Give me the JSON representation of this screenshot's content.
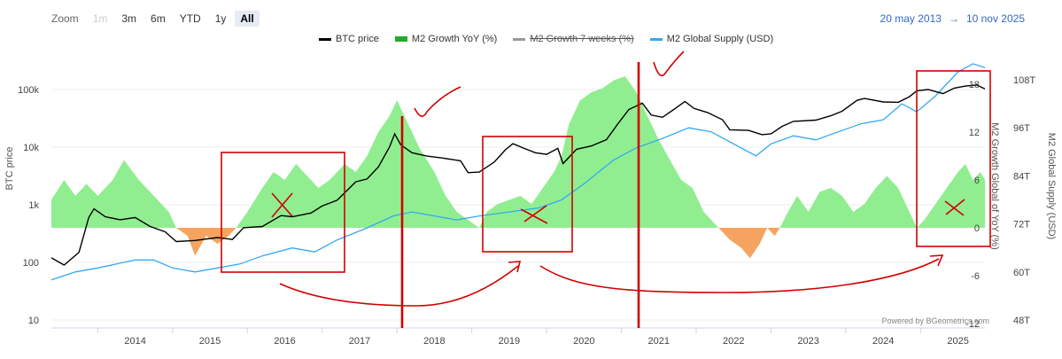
{
  "toolbar": {
    "zoom_label": "Zoom",
    "buttons": [
      "1m",
      "3m",
      "6m",
      "YTD",
      "1y",
      "All"
    ],
    "active": "All"
  },
  "range": {
    "from": "20 may 2013",
    "arrow": "→",
    "to": "10 nov 2025"
  },
  "credit": "Powered by BGeometrics.com",
  "colors": {
    "btc": "#000000",
    "m2_growth_pos": "#90ee90",
    "m2_growth_neg": "#f4a460",
    "m2_supply": "#33a8f0",
    "annotation": "#d20000"
  },
  "chart_data": {
    "type": "line",
    "legend": [
      "BTC price",
      "M2 Growth YoY (%)",
      "M2 Growth 7 weeks (%)",
      "M2 Global Supply (USD)"
    ],
    "left_axis": {
      "title": "BTC price",
      "scale": "log",
      "ticks": [
        "10",
        "100",
        "1k",
        "10k",
        "100k"
      ],
      "values": [
        10,
        100,
        1000,
        10000,
        100000
      ]
    },
    "growth_axis": {
      "title": "M2 Growth Global of YoY (%)",
      "ticks": [
        "-12",
        "-6",
        "0",
        "6",
        "12",
        "18"
      ],
      "values": [
        -12,
        -6,
        0,
        6,
        12,
        18
      ]
    },
    "supply_axis": {
      "title": "M2 Global Supply (USD)",
      "ticks": [
        "48T",
        "60T",
        "72T",
        "84T",
        "96T",
        "108T"
      ],
      "values": [
        48,
        60,
        72,
        84,
        96,
        108
      ]
    },
    "x_ticks": [
      "2014",
      "2015",
      "2016",
      "2017",
      "2018",
      "2019",
      "2020",
      "2021",
      "2022",
      "2023",
      "2024",
      "2025"
    ],
    "x_range": [
      2013.38,
      2025.86
    ],
    "series": [
      {
        "name": "BTC price",
        "points": [
          [
            2013.38,
            120
          ],
          [
            2013.55,
            90
          ],
          [
            2013.75,
            150
          ],
          [
            2013.88,
            600
          ],
          [
            2013.95,
            850
          ],
          [
            2014.1,
            620
          ],
          [
            2014.3,
            550
          ],
          [
            2014.5,
            600
          ],
          [
            2014.7,
            420
          ],
          [
            2014.9,
            340
          ],
          [
            2015.05,
            230
          ],
          [
            2015.3,
            240
          ],
          [
            2015.6,
            270
          ],
          [
            2015.8,
            250
          ],
          [
            2015.95,
            400
          ],
          [
            2016.2,
            420
          ],
          [
            2016.45,
            650
          ],
          [
            2016.6,
            620
          ],
          [
            2016.85,
            720
          ],
          [
            2017.0,
            950
          ],
          [
            2017.2,
            1200
          ],
          [
            2017.45,
            2500
          ],
          [
            2017.6,
            2800
          ],
          [
            2017.75,
            4500
          ],
          [
            2017.9,
            10000
          ],
          [
            2017.97,
            17000
          ],
          [
            2018.05,
            11000
          ],
          [
            2018.2,
            8000
          ],
          [
            2018.4,
            7000
          ],
          [
            2018.6,
            6500
          ],
          [
            2018.85,
            5800
          ],
          [
            2018.95,
            3600
          ],
          [
            2019.1,
            3700
          ],
          [
            2019.3,
            5500
          ],
          [
            2019.45,
            9000
          ],
          [
            2019.55,
            11500
          ],
          [
            2019.7,
            9500
          ],
          [
            2019.85,
            8000
          ],
          [
            2020.0,
            7500
          ],
          [
            2020.15,
            9500
          ],
          [
            2020.22,
            5200
          ],
          [
            2020.4,
            9200
          ],
          [
            2020.6,
            10500
          ],
          [
            2020.8,
            13500
          ],
          [
            2020.95,
            25000
          ],
          [
            2021.1,
            45000
          ],
          [
            2021.28,
            58000
          ],
          [
            2021.4,
            36000
          ],
          [
            2021.55,
            33000
          ],
          [
            2021.7,
            45000
          ],
          [
            2021.85,
            62000
          ],
          [
            2021.97,
            47000
          ],
          [
            2022.15,
            40000
          ],
          [
            2022.35,
            30000
          ],
          [
            2022.45,
            20000
          ],
          [
            2022.7,
            19500
          ],
          [
            2022.88,
            16500
          ],
          [
            2023.0,
            17000
          ],
          [
            2023.15,
            23000
          ],
          [
            2023.3,
            28000
          ],
          [
            2023.6,
            29500
          ],
          [
            2023.8,
            35000
          ],
          [
            2023.95,
            42000
          ],
          [
            2024.15,
            65000
          ],
          [
            2024.25,
            70000
          ],
          [
            2024.5,
            61000
          ],
          [
            2024.7,
            60000
          ],
          [
            2024.85,
            75000
          ],
          [
            2024.95,
            95000
          ],
          [
            2025.1,
            100000
          ],
          [
            2025.3,
            85000
          ],
          [
            2025.45,
            106000
          ],
          [
            2025.6,
            115000
          ],
          [
            2025.75,
            120000
          ],
          [
            2025.86,
            103000
          ]
        ]
      },
      {
        "name": "M2 Growth YoY (%)",
        "points": [
          [
            2013.38,
            3.5
          ],
          [
            2013.55,
            6
          ],
          [
            2013.7,
            4
          ],
          [
            2013.85,
            5.5
          ],
          [
            2014.0,
            4
          ],
          [
            2014.2,
            6
          ],
          [
            2014.35,
            8.5
          ],
          [
            2014.55,
            6
          ],
          [
            2014.75,
            4
          ],
          [
            2014.95,
            2
          ],
          [
            2015.05,
            0
          ],
          [
            2015.2,
            -1
          ],
          [
            2015.3,
            -3.5
          ],
          [
            2015.45,
            -1
          ],
          [
            2015.6,
            -2
          ],
          [
            2015.75,
            -1
          ],
          [
            2015.85,
            0
          ],
          [
            2016.0,
            2
          ],
          [
            2016.2,
            5
          ],
          [
            2016.35,
            7
          ],
          [
            2016.5,
            6
          ],
          [
            2016.65,
            8
          ],
          [
            2016.8,
            6.5
          ],
          [
            2016.95,
            5
          ],
          [
            2017.1,
            6
          ],
          [
            2017.3,
            8
          ],
          [
            2017.45,
            7
          ],
          [
            2017.6,
            9
          ],
          [
            2017.75,
            12
          ],
          [
            2017.9,
            14
          ],
          [
            2018.0,
            16
          ],
          [
            2018.1,
            14
          ],
          [
            2018.3,
            10
          ],
          [
            2018.5,
            7
          ],
          [
            2018.65,
            4
          ],
          [
            2018.8,
            2
          ],
          [
            2018.95,
            1
          ],
          [
            2019.1,
            0
          ],
          [
            2019.2,
            2
          ],
          [
            2019.35,
            3
          ],
          [
            2019.5,
            3.5
          ],
          [
            2019.65,
            4
          ],
          [
            2019.8,
            3
          ],
          [
            2019.95,
            5
          ],
          [
            2020.1,
            7
          ],
          [
            2020.2,
            9
          ],
          [
            2020.3,
            13
          ],
          [
            2020.45,
            16
          ],
          [
            2020.6,
            17
          ],
          [
            2020.75,
            17.5
          ],
          [
            2020.9,
            18.5
          ],
          [
            2021.05,
            19
          ],
          [
            2021.2,
            17
          ],
          [
            2021.35,
            14
          ],
          [
            2021.5,
            11
          ],
          [
            2021.65,
            8.5
          ],
          [
            2021.8,
            6
          ],
          [
            2021.95,
            5
          ],
          [
            2022.1,
            2
          ],
          [
            2022.3,
            0
          ],
          [
            2022.45,
            -1.5
          ],
          [
            2022.6,
            -2.5
          ],
          [
            2022.72,
            -3.8
          ],
          [
            2022.85,
            -2
          ],
          [
            2022.95,
            0
          ],
          [
            2023.05,
            -1
          ],
          [
            2023.12,
            0
          ],
          [
            2023.2,
            1.5
          ],
          [
            2023.35,
            4
          ],
          [
            2023.5,
            2
          ],
          [
            2023.65,
            4.5
          ],
          [
            2023.8,
            5
          ],
          [
            2023.95,
            4
          ],
          [
            2024.1,
            2
          ],
          [
            2024.25,
            3
          ],
          [
            2024.4,
            5
          ],
          [
            2024.55,
            6.5
          ],
          [
            2024.7,
            5
          ],
          [
            2024.85,
            2
          ],
          [
            2024.95,
            0
          ],
          [
            2025.05,
            1
          ],
          [
            2025.2,
            3
          ],
          [
            2025.35,
            5
          ],
          [
            2025.5,
            7
          ],
          [
            2025.6,
            8
          ],
          [
            2025.7,
            6
          ],
          [
            2025.8,
            7
          ],
          [
            2025.86,
            6
          ]
        ]
      },
      {
        "name": "M2 Global Supply (USD)",
        "points": [
          [
            2013.38,
            58
          ],
          [
            2013.7,
            60
          ],
          [
            2014.0,
            61
          ],
          [
            2014.5,
            63
          ],
          [
            2014.75,
            63
          ],
          [
            2015.0,
            61
          ],
          [
            2015.3,
            60
          ],
          [
            2015.6,
            61
          ],
          [
            2015.9,
            62
          ],
          [
            2016.2,
            64
          ],
          [
            2016.6,
            66
          ],
          [
            2016.9,
            65
          ],
          [
            2017.2,
            68
          ],
          [
            2017.6,
            71
          ],
          [
            2017.95,
            74
          ],
          [
            2018.2,
            75
          ],
          [
            2018.5,
            74
          ],
          [
            2018.8,
            73
          ],
          [
            2019.1,
            74
          ],
          [
            2019.5,
            75
          ],
          [
            2019.9,
            76
          ],
          [
            2020.2,
            78
          ],
          [
            2020.5,
            82
          ],
          [
            2020.9,
            88
          ],
          [
            2021.2,
            91
          ],
          [
            2021.5,
            93
          ],
          [
            2021.9,
            96
          ],
          [
            2022.2,
            95
          ],
          [
            2022.5,
            92
          ],
          [
            2022.8,
            89
          ],
          [
            2023.0,
            92
          ],
          [
            2023.3,
            94
          ],
          [
            2023.6,
            93
          ],
          [
            2023.9,
            95
          ],
          [
            2024.2,
            97
          ],
          [
            2024.5,
            98
          ],
          [
            2024.75,
            102
          ],
          [
            2024.95,
            100
          ],
          [
            2025.2,
            104
          ],
          [
            2025.5,
            110
          ],
          [
            2025.7,
            112
          ],
          [
            2025.86,
            111
          ]
        ]
      }
    ]
  }
}
